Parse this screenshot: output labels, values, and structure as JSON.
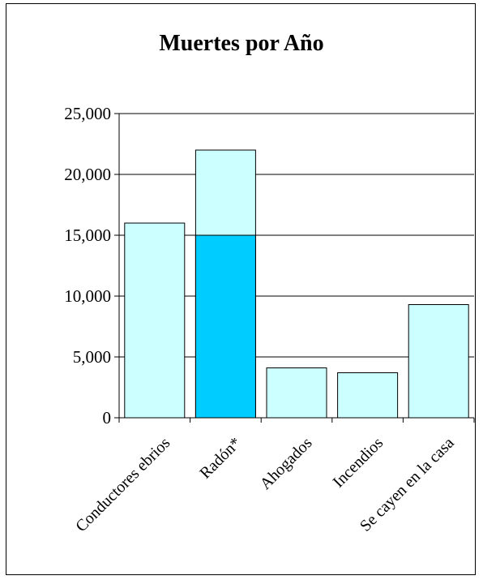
{
  "chart_data": {
    "type": "bar",
    "title": "Muertes por Año",
    "xlabel": "",
    "ylabel": "",
    "ylim": [
      0,
      25000
    ],
    "yticks": [
      0,
      5000,
      10000,
      15000,
      20000,
      25000
    ],
    "ytick_labels": [
      "0",
      "5,000",
      "10,000",
      "15,000",
      "20,000",
      "25,000"
    ],
    "grid": true,
    "categories": [
      "Conductores ebrios",
      "Radón*",
      "Ahogados",
      "Incendios",
      "Se cayen en la casa"
    ],
    "values": [
      16000,
      22000,
      4100,
      3700,
      9300
    ],
    "highlight": {
      "category": "Radón*",
      "value": 15000
    },
    "colors": {
      "bar": "#ccffff",
      "highlight": "#00ccff",
      "border": "#000000",
      "grid": "#000000"
    }
  }
}
